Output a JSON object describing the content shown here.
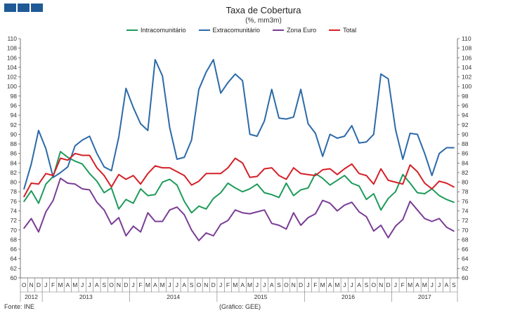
{
  "logo": {
    "blocks": [
      "1",
      "2",
      "3"
    ]
  },
  "chart_data": {
    "type": "line",
    "title": "Taxa de Cobertura",
    "subtitle": "(%, mm3m)",
    "ylim": [
      60,
      110
    ],
    "yticks": [
      60,
      62,
      64,
      66,
      68,
      70,
      72,
      74,
      76,
      78,
      80,
      82,
      84,
      86,
      88,
      90,
      92,
      94,
      96,
      98,
      100,
      102,
      104,
      106,
      108,
      110
    ],
    "x": [
      "O",
      "N",
      "D",
      "J",
      "F",
      "M",
      "A",
      "M",
      "J",
      "J",
      "A",
      "S",
      "O",
      "N",
      "D",
      "J",
      "F",
      "M",
      "A",
      "M",
      "J",
      "J",
      "A",
      "S",
      "O",
      "N",
      "D",
      "J",
      "F",
      "M",
      "A",
      "M",
      "J",
      "J",
      "A",
      "S",
      "O",
      "N",
      "D",
      "J",
      "F",
      "M",
      "A",
      "M",
      "J",
      "J",
      "A",
      "S",
      "O",
      "N",
      "D",
      "J",
      "F",
      "M",
      "A",
      "M",
      "J",
      "J",
      "A",
      "S"
    ],
    "years": [
      {
        "label": "2012",
        "start": 0,
        "end": 2
      },
      {
        "label": "2013",
        "start": 3,
        "end": 14
      },
      {
        "label": "2014",
        "start": 15,
        "end": 26
      },
      {
        "label": "2015",
        "start": 27,
        "end": 38
      },
      {
        "label": "2016",
        "start": 39,
        "end": 50
      },
      {
        "label": "2017",
        "start": 51,
        "end": 59
      }
    ],
    "series": [
      {
        "name": "Intracomunitário",
        "color": "#1e9b5a",
        "values": [
          76.0,
          78.2,
          75.6,
          79.6,
          81.2,
          86.4,
          85.2,
          84.4,
          83.8,
          81.8,
          80.2,
          77.8,
          78.8,
          74.4,
          76.4,
          75.6,
          78.6,
          77.2,
          77.4,
          80.0,
          80.6,
          79.4,
          76.0,
          73.6,
          75.0,
          74.4,
          76.6,
          77.8,
          79.8,
          78.8,
          78.0,
          78.6,
          79.6,
          77.8,
          77.4,
          76.8,
          79.8,
          77.2,
          78.4,
          78.8,
          81.8,
          80.8,
          79.4,
          80.4,
          81.4,
          79.8,
          79.2,
          76.4,
          77.6,
          74.2,
          76.6,
          78.0,
          81.6,
          79.8,
          77.8,
          77.6,
          78.6,
          77.2,
          76.4,
          75.8
        ]
      },
      {
        "name": "Extracomunitário",
        "color": "#2c6aa8",
        "values": [
          78.6,
          83.8,
          90.8,
          87.0,
          81.0,
          82.0,
          83.2,
          87.6,
          88.8,
          89.6,
          86.0,
          83.2,
          82.4,
          89.4,
          99.6,
          95.6,
          92.2,
          90.8,
          105.6,
          102.2,
          91.4,
          84.8,
          85.2,
          88.8,
          99.4,
          103.0,
          105.6,
          98.6,
          100.8,
          102.6,
          101.2,
          90.0,
          89.6,
          92.8,
          99.4,
          93.4,
          93.2,
          93.6,
          99.4,
          92.2,
          90.2,
          85.4,
          90.0,
          89.2,
          89.6,
          91.8,
          88.2,
          88.4,
          90.0,
          102.6,
          101.6,
          91.0,
          84.8,
          90.2,
          90.0,
          86.0,
          81.4,
          86.0,
          87.2,
          87.2
        ]
      },
      {
        "name": "Zona Euro",
        "color": "#7a3d96",
        "values": [
          70.4,
          72.4,
          69.6,
          73.8,
          76.2,
          80.8,
          79.8,
          79.6,
          78.6,
          78.4,
          75.8,
          74.2,
          71.2,
          72.6,
          68.8,
          70.8,
          69.6,
          73.6,
          71.8,
          71.8,
          74.2,
          74.8,
          73.2,
          70.0,
          67.8,
          69.4,
          68.8,
          71.2,
          72.0,
          74.2,
          73.6,
          73.4,
          73.8,
          74.2,
          71.4,
          71.0,
          70.2,
          73.6,
          71.0,
          72.6,
          73.4,
          76.2,
          75.6,
          74.0,
          75.2,
          75.8,
          73.8,
          72.8,
          69.8,
          71.0,
          68.4,
          70.8,
          72.2,
          76.0,
          74.2,
          72.4,
          71.8,
          72.4,
          70.6,
          69.8
        ]
      },
      {
        "name": "Total",
        "color": "#d42027",
        "values": [
          77.0,
          79.8,
          79.6,
          81.8,
          81.4,
          85.0,
          84.6,
          86.0,
          85.6,
          85.6,
          83.0,
          81.4,
          79.0,
          81.6,
          80.6,
          81.4,
          79.6,
          81.8,
          83.4,
          83.0,
          83.0,
          82.2,
          81.4,
          79.4,
          80.2,
          81.8,
          81.8,
          81.8,
          83.0,
          85.0,
          84.0,
          81.0,
          81.2,
          82.8,
          83.0,
          81.4,
          80.6,
          83.0,
          81.8,
          81.6,
          81.4,
          82.6,
          82.8,
          81.6,
          82.8,
          83.8,
          81.8,
          81.4,
          79.6,
          82.8,
          80.4,
          80.0,
          79.6,
          83.6,
          82.2,
          79.8,
          78.6,
          80.2,
          79.8,
          79.0
        ]
      }
    ],
    "legend": [
      "Intracomunitário",
      "Extracomunitário",
      "Zona Euro",
      "Total"
    ]
  },
  "footer": {
    "source": "Fonte: INE",
    "credit": "(Gráfico: GEE)"
  }
}
